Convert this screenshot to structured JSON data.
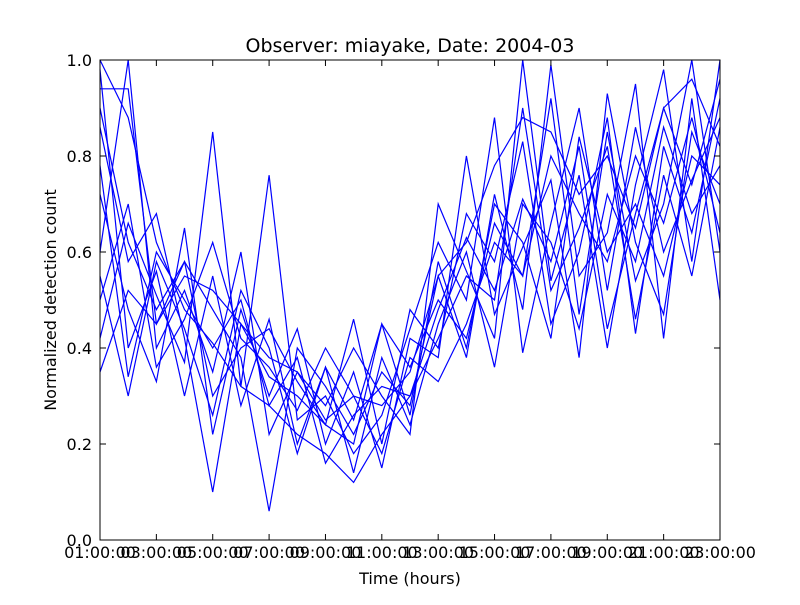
{
  "chart_data": {
    "type": "line",
    "title": "Observer: miayake, Date: 2004-03",
    "xlabel": "Time (hours)",
    "ylabel": "Normalized detection count",
    "xlim": [
      1,
      23
    ],
    "ylim": [
      0.0,
      1.0
    ],
    "xticks": [
      1,
      3,
      5,
      7,
      9,
      11,
      13,
      15,
      17,
      19,
      21,
      23
    ],
    "xtick_labels": [
      "01:00:00",
      "03:00:00",
      "05:00:00",
      "07:00:00",
      "09:00:00",
      "11:00:00",
      "13:00:00",
      "15:00:00",
      "17:00:00",
      "19:00:00",
      "21:00:00",
      "23:00:00"
    ],
    "xtick_labels_overlap": [
      "03",
      "05",
      "07",
      "09",
      "11",
      "13",
      "15",
      "17",
      "19",
      "21",
      "23",
      ""
    ],
    "yticks": [
      0.0,
      0.2,
      0.4,
      0.6,
      0.8,
      1.0
    ],
    "ytick_labels": [
      "0.0",
      "0.2",
      "0.4",
      "0.6",
      "0.8",
      "1.0"
    ],
    "line_color": "#0000ff",
    "grid": false,
    "x": [
      1,
      2,
      3,
      4,
      5,
      6,
      7,
      8,
      9,
      10,
      11,
      12,
      13,
      14,
      15,
      16,
      17,
      18,
      19,
      20,
      21,
      22,
      23
    ],
    "series": [
      {
        "values": [
          0.94,
          0.94,
          0.45,
          0.55,
          0.52,
          0.45,
          0.38,
          0.35,
          0.25,
          0.3,
          0.28,
          0.35,
          0.55,
          0.62,
          0.78,
          0.88,
          0.85,
          0.72,
          0.8,
          0.65,
          0.9,
          0.96,
          0.82
        ]
      },
      {
        "values": [
          1.0,
          0.88,
          0.62,
          0.48,
          0.41,
          0.32,
          0.28,
          0.22,
          0.18,
          0.12,
          0.22,
          0.3,
          0.48,
          0.63,
          0.52,
          0.71,
          0.58,
          0.82,
          0.44,
          0.68,
          0.9,
          0.74,
          0.96
        ]
      },
      {
        "values": [
          0.55,
          0.3,
          0.58,
          0.44,
          0.26,
          0.52,
          0.4,
          0.18,
          0.36,
          0.25,
          0.45,
          0.36,
          0.5,
          0.42,
          0.66,
          0.55,
          0.92,
          0.47,
          0.85,
          0.54,
          0.7,
          1.0,
          0.6
        ]
      },
      {
        "values": [
          0.72,
          0.48,
          0.33,
          0.65,
          0.22,
          0.48,
          0.3,
          0.44,
          0.2,
          0.35,
          0.15,
          0.42,
          0.38,
          0.8,
          0.47,
          0.61,
          0.75,
          0.38,
          0.93,
          0.62,
          0.47,
          0.85,
          0.7
        ]
      },
      {
        "values": [
          0.42,
          0.66,
          0.51,
          0.37,
          0.85,
          0.32,
          0.76,
          0.25,
          0.3,
          0.18,
          0.26,
          0.44,
          0.62,
          0.5,
          0.88,
          0.39,
          0.66,
          0.9,
          0.52,
          0.86,
          0.6,
          0.75,
          0.88
        ]
      },
      {
        "values": [
          0.6,
          1.0,
          0.4,
          0.52,
          0.35,
          0.6,
          0.22,
          0.35,
          0.28,
          0.4,
          0.3,
          0.22,
          0.7,
          0.56,
          0.42,
          1.0,
          0.54,
          0.76,
          0.4,
          0.74,
          0.98,
          0.58,
          1.0
        ]
      },
      {
        "values": [
          0.86,
          0.58,
          0.68,
          0.42,
          0.1,
          0.45,
          0.34,
          0.3,
          0.24,
          0.46,
          0.2,
          0.48,
          0.4,
          0.68,
          0.58,
          0.83,
          0.45,
          0.6,
          0.88,
          0.43,
          0.82,
          0.64,
          0.92
        ]
      },
      {
        "values": [
          0.35,
          0.52,
          0.45,
          0.58,
          0.48,
          0.38,
          0.06,
          0.4,
          0.32,
          0.22,
          0.35,
          0.28,
          0.55,
          0.38,
          0.72,
          0.48,
          0.99,
          0.55,
          0.64,
          0.95,
          0.42,
          0.92,
          0.5
        ]
      },
      {
        "values": [
          0.98,
          0.4,
          0.56,
          0.3,
          0.55,
          0.28,
          0.46,
          0.2,
          0.36,
          0.14,
          0.38,
          0.24,
          0.45,
          0.6,
          0.36,
          0.7,
          0.62,
          0.44,
          0.72,
          0.58,
          0.86,
          0.68,
          0.78
        ]
      },
      {
        "values": [
          0.5,
          0.7,
          0.36,
          0.46,
          0.62,
          0.42,
          0.36,
          0.27,
          0.4,
          0.3,
          0.18,
          0.38,
          0.33,
          0.45,
          0.62,
          0.55,
          0.8,
          0.68,
          0.58,
          0.8,
          0.66,
          0.88,
          0.64
        ]
      },
      {
        "values": [
          0.78,
          0.34,
          0.6,
          0.5,
          0.4,
          0.5,
          0.28,
          0.38,
          0.16,
          0.26,
          0.32,
          0.3,
          0.42,
          0.55,
          0.5,
          0.9,
          0.52,
          0.65,
          0.82,
          0.46,
          0.76,
          0.55,
          0.86
        ]
      },
      {
        "values": [
          0.9,
          0.62,
          0.48,
          0.58,
          0.3,
          0.4,
          0.44,
          0.33,
          0.24,
          0.2,
          0.45,
          0.26,
          0.58,
          0.4,
          0.7,
          0.62,
          0.42,
          0.84,
          0.6,
          0.7,
          0.55,
          0.8,
          0.74
        ]
      }
    ]
  }
}
